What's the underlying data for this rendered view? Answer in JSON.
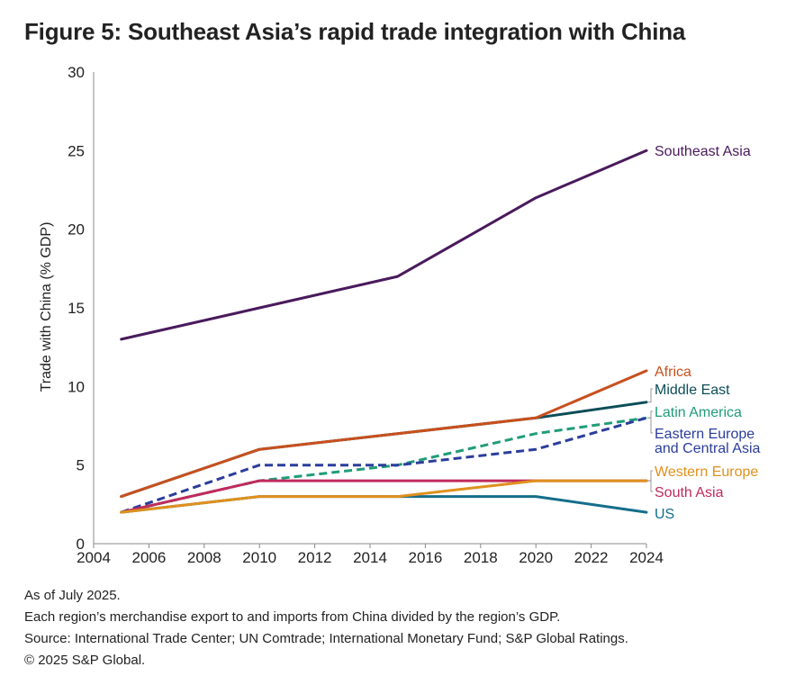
{
  "chart_data": {
    "type": "line",
    "title": "Figure 5: Southeast Asia’s rapid trade integration with China",
    "ylabel": "Trade with China (% GDP)",
    "xlabel": "",
    "xlim": [
      2004,
      2024
    ],
    "ylim": [
      0,
      30
    ],
    "x_ticks": [
      "2004",
      "2006",
      "2008",
      "2010",
      "2012",
      "2014",
      "2016",
      "2018",
      "2020",
      "2022",
      "2024"
    ],
    "y_ticks": [
      "0",
      "5",
      "10",
      "15",
      "20",
      "25",
      "30"
    ],
    "grid": false,
    "legend": "direct-labels-right",
    "series": [
      {
        "name": "Southeast Asia",
        "x": [
          2005,
          2010,
          2015,
          2020,
          2024
        ],
        "values": [
          13,
          15,
          17,
          22,
          25
        ],
        "color": "#4a1a5c",
        "dashed": false
      },
      {
        "name": "Middle East",
        "x": [
          2005,
          2010,
          2015,
          2020,
          2024
        ],
        "values": [
          3,
          6,
          7,
          8,
          9
        ],
        "color": "#0b4d57",
        "dashed": false
      },
      {
        "name": "Africa",
        "x": [
          2005,
          2010,
          2015,
          2020,
          2024
        ],
        "values": [
          3,
          6,
          7,
          8,
          11
        ],
        "color": "#c8501e",
        "dashed": false
      },
      {
        "name": "Latin America",
        "x": [
          2005,
          2010,
          2015,
          2020,
          2024
        ],
        "values": [
          2,
          4,
          5,
          7,
          8
        ],
        "color": "#1f9c78",
        "dashed": true
      },
      {
        "name": "Eastern Europe\nand Central Asia",
        "x": [
          2005,
          2010,
          2015,
          2020,
          2024
        ],
        "values": [
          2,
          5,
          5,
          6,
          8
        ],
        "color": "#2b3d9c",
        "dashed": true
      },
      {
        "name": "South Asia",
        "x": [
          2005,
          2010,
          2015,
          2020,
          2024
        ],
        "values": [
          2,
          4,
          4,
          4,
          4
        ],
        "color": "#c02a5c",
        "dashed": false
      },
      {
        "name": "US",
        "x": [
          2005,
          2010,
          2015,
          2020,
          2024
        ],
        "values": [
          2,
          3,
          3,
          3,
          2
        ],
        "color": "#146e8a",
        "dashed": false
      },
      {
        "name": "Western Europe",
        "x": [
          2005,
          2010,
          2015,
          2020,
          2024
        ],
        "values": [
          2,
          3,
          3,
          4,
          4
        ],
        "color": "#e0901e",
        "dashed": false
      }
    ],
    "label_order": [
      "Southeast Asia",
      "Africa",
      "Middle East",
      "Latin America",
      "Eastern Europe\nand Central Asia",
      "Western Europe",
      "South Asia",
      "US"
    ]
  },
  "footnotes": [
    "As of July 2025.",
    "Each region’s merchandise export to and imports from China divided by the region’s GDP.",
    "Source: International Trade Center; UN Comtrade; International Monetary Fund; S&P Global Ratings.",
    "© 2025 S&P Global."
  ]
}
